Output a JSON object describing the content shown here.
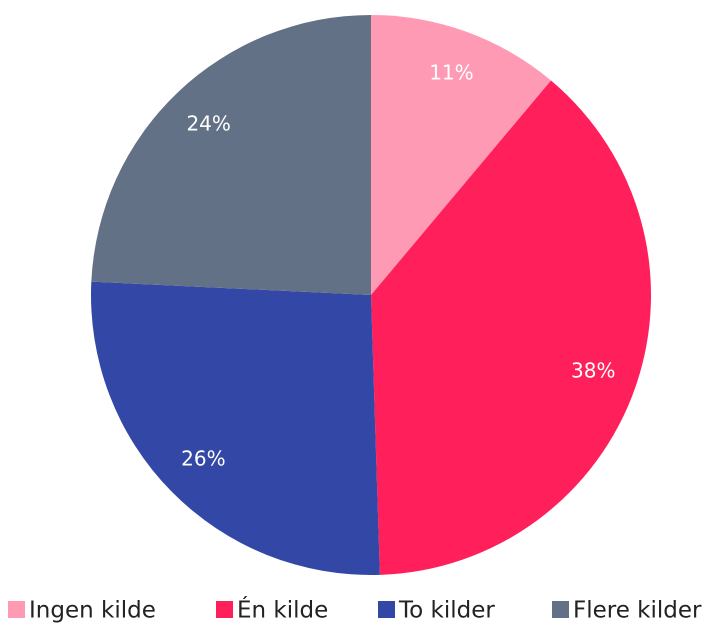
{
  "chart_data": {
    "type": "pie",
    "categories": [
      "Ingen kilde",
      "Én kilde",
      "To kilder",
      "Flere kilder"
    ],
    "values": [
      11,
      38,
      26,
      24
    ],
    "value_labels": [
      "11%",
      "38%",
      "26%",
      "24%"
    ],
    "colors": [
      "#ff9ab5",
      "#ff1f5b",
      "#3347a6",
      "#637186"
    ],
    "legend": "bottom"
  }
}
